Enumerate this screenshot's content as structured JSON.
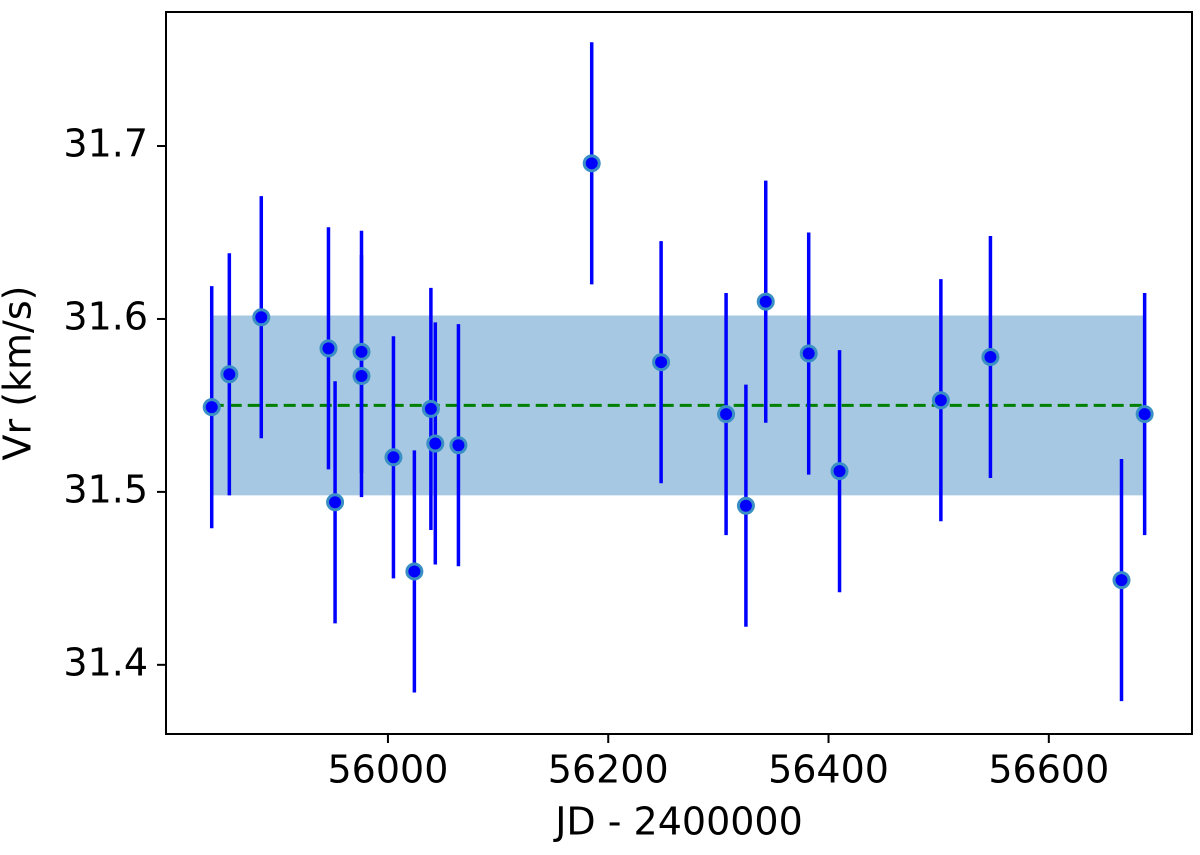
{
  "chart_data": {
    "type": "scatter",
    "x_label": "JD - 2400000",
    "y_label": "Vr (km/s)",
    "x": [
      55840,
      55856,
      55885,
      55946,
      55952,
      55976,
      55976,
      56005,
      56024,
      56039,
      56043,
      56064,
      56185,
      56248,
      56307,
      56325,
      56343,
      56382,
      56410,
      56502,
      56547,
      56666,
      56687
    ],
    "values": [
      31.549,
      31.568,
      31.601,
      31.583,
      31.494,
      31.581,
      31.567,
      31.52,
      31.454,
      31.548,
      31.528,
      31.527,
      31.69,
      31.575,
      31.545,
      31.492,
      31.61,
      31.58,
      31.512,
      31.553,
      31.578,
      31.449,
      31.545
    ],
    "errors": [
      0.07,
      0.07,
      0.07,
      0.07,
      0.07,
      0.07,
      0.07,
      0.07,
      0.07,
      0.07,
      0.07,
      0.07,
      0.07,
      0.07,
      0.07,
      0.07,
      0.07,
      0.07,
      0.07,
      0.07,
      0.07,
      0.07,
      0.07
    ],
    "color": "#0000ff",
    "marker_edge_color": "#3a8fc4",
    "band": {
      "xlim": [
        55840,
        56687
      ],
      "ylim": [
        31.498,
        31.602
      ],
      "color": "#a6c8e2"
    },
    "mean": {
      "xlim": [
        55840,
        56687
      ],
      "value": 31.55,
      "color": "#008000"
    },
    "xlim": [
      55798.5,
      56730
    ],
    "ylim": [
      31.36,
      31.7775
    ],
    "xticks": [
      56000,
      56200,
      56400,
      56600
    ],
    "yticks": [
      31.4,
      31.5,
      31.6,
      31.7
    ]
  }
}
